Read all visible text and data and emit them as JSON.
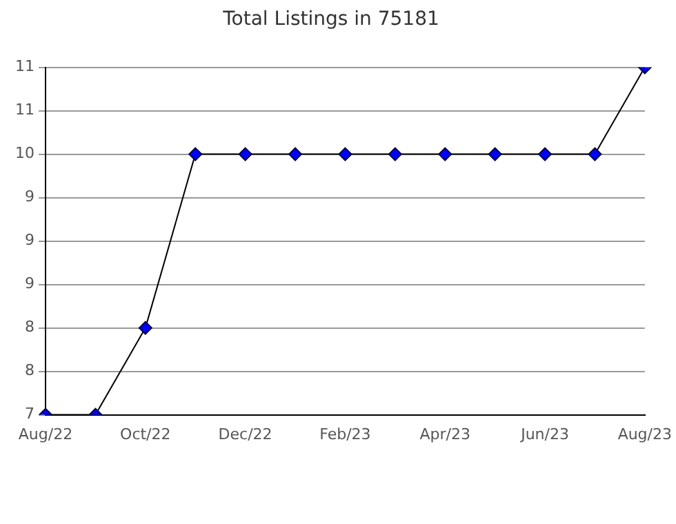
{
  "chart_data": {
    "type": "line",
    "title": "Total Listings in 75181",
    "categories": [
      "Aug/22",
      null,
      "Oct/22",
      null,
      "Dec/22",
      null,
      "Feb/23",
      null,
      "Apr/23",
      null,
      "Jun/23",
      null,
      "Aug/23"
    ],
    "values": [
      7,
      7,
      8,
      10,
      10,
      10,
      10,
      10,
      10,
      10,
      10,
      10,
      11
    ],
    "color": "#0000ff",
    "marker": "diamond",
    "line_style": "solid",
    "ylim": [
      7,
      11
    ],
    "yticks": [
      {
        "value": 7,
        "label": "7"
      },
      {
        "value": 7.5,
        "label": "8"
      },
      {
        "value": 8,
        "label": "8"
      },
      {
        "value": 8.5,
        "label": "9"
      },
      {
        "value": 9,
        "label": "9"
      },
      {
        "value": 9.5,
        "label": "9"
      },
      {
        "value": 10,
        "label": "10"
      },
      {
        "value": 10.5,
        "label": "11"
      },
      {
        "value": 11,
        "label": "11"
      }
    ],
    "grid": "y",
    "legend": false
  }
}
